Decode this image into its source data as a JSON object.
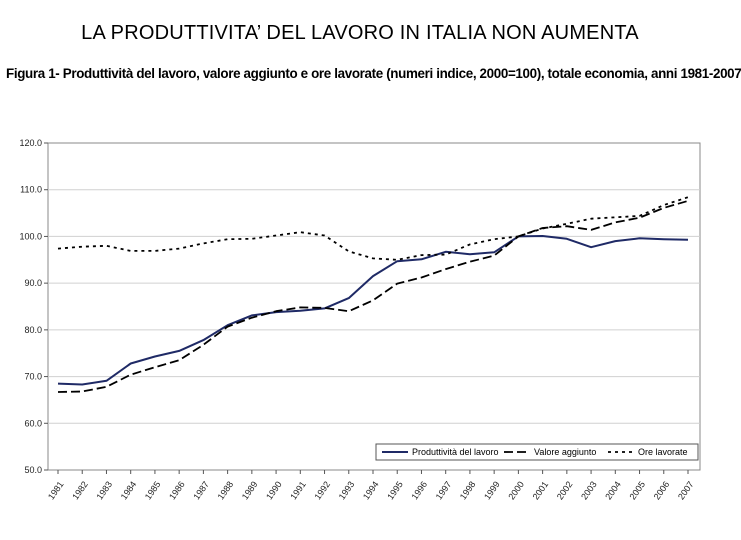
{
  "slide": {
    "title": "LA PRODUTTIVITA’ DEL LAVORO IN ITALIA NON AUMENTA"
  },
  "chart_data": {
    "type": "line",
    "title": "Figura 1- Produttività del lavoro, valore aggiunto e ore lavorate (numeri indice, 2000=100), totale economia, anni 1981-2007",
    "xlabel": "",
    "ylabel": "",
    "ylim": [
      50,
      120
    ],
    "yticks": [
      "120.0",
      "110.0",
      "100.0",
      "90.0",
      "80.0",
      "70.0",
      "60.0",
      "50.0"
    ],
    "ytick_values": [
      120,
      110,
      100,
      90,
      80,
      70,
      60,
      50
    ],
    "grid": "horizontal",
    "legend_position": "bottom-right",
    "x": [
      "1981",
      "1982",
      "1983",
      "1984",
      "1985",
      "1986",
      "1987",
      "1988",
      "1989",
      "1990",
      "1991",
      "1992",
      "1993",
      "1994",
      "1995",
      "1996",
      "1997",
      "1998",
      "1999",
      "2000",
      "2001",
      "2002",
      "2003",
      "2004",
      "2005",
      "2006",
      "2007"
    ],
    "series": [
      {
        "name": "Produttività del lavoro",
        "style": "solid",
        "color": "#1f2a66",
        "values": [
          68.5,
          68.3,
          69.1,
          72.8,
          74.3,
          75.5,
          77.8,
          81.0,
          83.1,
          83.8,
          84.1,
          84.6,
          86.8,
          91.5,
          94.7,
          95.1,
          96.7,
          96.2,
          96.6,
          100.0,
          100.1,
          99.5,
          97.7,
          99.0,
          99.6,
          99.4,
          99.3
        ]
      },
      {
        "name": "Valore aggiunto",
        "style": "dashed",
        "color": "#000000",
        "values": [
          66.7,
          66.8,
          67.8,
          70.4,
          72.0,
          73.5,
          76.8,
          80.7,
          82.6,
          84.0,
          84.8,
          84.7,
          84.0,
          86.3,
          89.9,
          91.2,
          93.0,
          94.6,
          95.9,
          100.0,
          101.8,
          102.2,
          101.4,
          103.0,
          104.0,
          106.1,
          107.6
        ]
      },
      {
        "name": "Ore lavorate",
        "style": "dotted",
        "color": "#000000",
        "values": [
          97.4,
          97.8,
          98.0,
          96.9,
          96.9,
          97.4,
          98.5,
          99.4,
          99.5,
          100.2,
          100.9,
          100.2,
          96.8,
          95.3,
          95.0,
          96.0,
          96.1,
          98.3,
          99.4,
          100.0,
          101.7,
          102.7,
          103.8,
          104.1,
          104.4,
          106.7,
          108.4
        ]
      }
    ]
  }
}
